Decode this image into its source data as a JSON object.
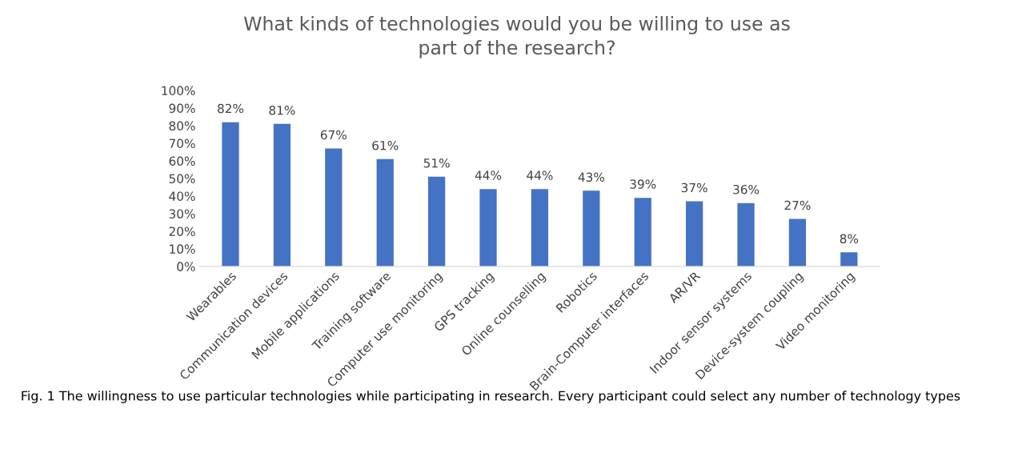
{
  "chart_data": {
    "type": "bar",
    "title": "What kinds of technologies would you be willing to use as\npart of the research?",
    "categories": [
      "Wearables",
      "Communication devices",
      "Mobile applications",
      "Training software",
      "Computer use monitoring",
      "GPS tracking",
      "Online counselling",
      "Robotics",
      "Brain-Computer interfaces",
      "AR/VR",
      "Indoor sensor systems",
      "Device-system coupling",
      "Video monitoring"
    ],
    "values": [
      82,
      81,
      67,
      61,
      51,
      44,
      44,
      43,
      39,
      37,
      36,
      27,
      8
    ],
    "value_labels": [
      "82%",
      "81%",
      "67%",
      "61%",
      "51%",
      "44%",
      "44%",
      "43%",
      "39%",
      "37%",
      "36%",
      "27%",
      "8%"
    ],
    "color": "#4472c4",
    "ylim": [
      0,
      100
    ],
    "yticks": [
      {
        "value": 0,
        "label": "0%"
      },
      {
        "value": 10,
        "label": "10%"
      },
      {
        "value": 20,
        "label": "20%"
      },
      {
        "value": 30,
        "label": "30%"
      },
      {
        "value": 40,
        "label": "40%"
      },
      {
        "value": 50,
        "label": "50%"
      },
      {
        "value": 60,
        "label": "60%"
      },
      {
        "value": 70,
        "label": "70%"
      },
      {
        "value": 80,
        "label": "80%"
      },
      {
        "value": 90,
        "label": "90%"
      },
      {
        "value": 100,
        "label": "100%"
      }
    ],
    "grid": false,
    "legend": false,
    "annotations": [
      "Fig. 1 The willingness to use particular technologies while participating in research. Every participant could select any number of technology types"
    ]
  }
}
